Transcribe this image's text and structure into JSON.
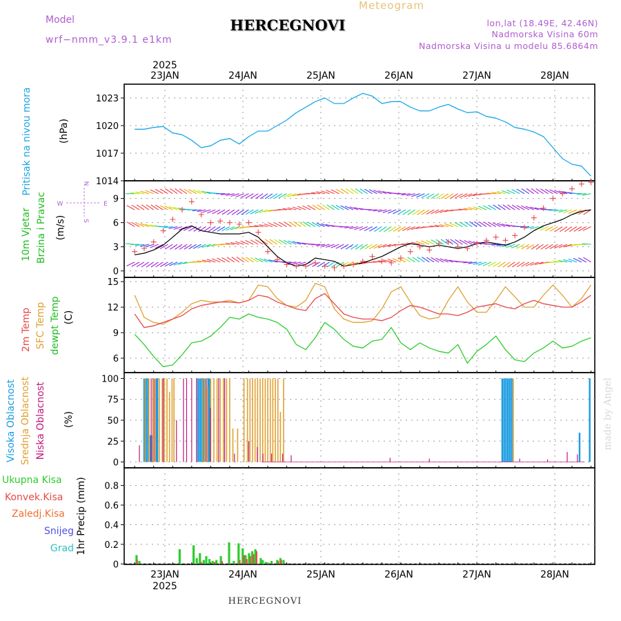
{
  "header": {
    "model_label": "Model",
    "model_name": "wrf−nmm_v3.9.1  e1km",
    "meteogram_label": "Meteogram",
    "station": "HERCEGNOVI",
    "lonlat": "lon,lat (18.49E, 42.46N)",
    "elevation": "Nadmorska Visina 60m",
    "model_elevation": "Nadmorska Visina u modelu 85.6864m",
    "footer_station": "HERCEGNOVI",
    "credit": "made by Angel"
  },
  "colors": {
    "pressure": "#1aa6e6",
    "wind_obs": "#e84848",
    "wind_line": "#000000",
    "t2m": "#e84848",
    "sfc": "#e0a030",
    "dewpt": "#2ecc2e",
    "high_cloud": "#1a9be0",
    "mid_cloud": "#e0a030",
    "low_cloud": "#c0187a",
    "total_precip": "#2ecc2e",
    "conv_precip": "#e84848",
    "frozen_precip": "#f07030",
    "snow": "#5050e0",
    "graupel": "#30c0c0",
    "label_magenta": "#b05cd0"
  },
  "chart_data": [
    {
      "type": "line",
      "name": "pressure",
      "ylabel_main": "Pritisak na nivou mora",
      "ylabel_unit": "(hPa)",
      "ylim": [
        1014,
        1024.5
      ],
      "yticks": [
        1014,
        1017,
        1020,
        1023
      ],
      "x_dates": [
        "2025",
        "23JAN",
        "24JAN",
        "25JAN",
        "26JAN",
        "27JAN",
        "28JAN"
      ],
      "x_hours": [
        0,
        3,
        6,
        9,
        12,
        15,
        18,
        21,
        24,
        27,
        30,
        33,
        36,
        39,
        42,
        45,
        48,
        51,
        54,
        57,
        60,
        63,
        66,
        69,
        72,
        75,
        78,
        81,
        84,
        87,
        90,
        93,
        96,
        99,
        102,
        105,
        108,
        111,
        114,
        117,
        120,
        123,
        126,
        129,
        132,
        135,
        138,
        141,
        144
      ],
      "series": [
        {
          "values": [
            1019.6,
            1019.6,
            1019.8,
            1019.9,
            1019.2,
            1019.0,
            1018.4,
            1017.6,
            1017.8,
            1018.4,
            1018.6,
            1018.0,
            1018.8,
            1019.4,
            1019.4,
            1020.0,
            1020.6,
            1021.4,
            1022.0,
            1022.6,
            1023.0,
            1022.4,
            1022.4,
            1023.0,
            1023.5,
            1023.2,
            1022.4,
            1022.6,
            1022.6,
            1022.0,
            1021.6,
            1021.6,
            1022.0,
            1022.3,
            1021.8,
            1021.4,
            1021.5,
            1021.0,
            1020.8,
            1020.4,
            1019.8,
            1019.6,
            1019.3,
            1018.8,
            1017.6,
            1016.4,
            1015.8,
            1015.6,
            1014.5
          ]
        }
      ]
    },
    {
      "type": "line",
      "name": "wind",
      "ylabel_main": "10m Vjetar",
      "ylabel_sub": "Brzina i Pravac",
      "ylabel_unit": "(m/s)",
      "compass_w": "W",
      "compass_e": "E",
      "compass_n": "N",
      "compass_s": "S",
      "ylim": [
        -0.8,
        11.2
      ],
      "yticks": [
        0,
        3,
        6,
        9
      ],
      "arrow_levels": [
        9.6,
        7.6,
        5.5,
        3.3,
        1.1
      ],
      "x_hours": [
        0,
        3,
        6,
        9,
        12,
        15,
        18,
        21,
        24,
        27,
        30,
        33,
        36,
        39,
        42,
        45,
        48,
        51,
        54,
        57,
        60,
        63,
        66,
        69,
        72,
        75,
        78,
        81,
        84,
        87,
        90,
        93,
        96,
        99,
        102,
        105,
        108,
        111,
        114,
        117,
        120,
        123,
        126,
        129,
        132,
        135,
        138,
        141,
        144
      ],
      "series": [
        {
          "values": [
            2.0,
            2.2,
            2.6,
            3.2,
            4.2,
            5.2,
            5.6,
            5.0,
            4.8,
            4.6,
            4.6,
            4.6,
            4.8,
            4.2,
            3.0,
            1.8,
            1.0,
            0.6,
            0.8,
            1.6,
            1.4,
            1.2,
            0.6,
            0.8,
            1.0,
            1.4,
            1.8,
            2.4,
            3.0,
            3.4,
            3.2,
            3.0,
            3.2,
            3.0,
            2.8,
            3.0,
            3.4,
            3.6,
            3.4,
            3.2,
            3.6,
            4.2,
            5.0,
            5.6,
            6.0,
            6.4,
            7.0,
            7.4,
            7.6
          ]
        },
        {
          "values": [
            2.4,
            2.8,
            3.6,
            5.0,
            6.4,
            7.6,
            8.6,
            7.0,
            6.0,
            6.2,
            6.0,
            5.8,
            6.0,
            4.8,
            2.4,
            1.4,
            0.8,
            0.6,
            0.6,
            1.0,
            0.6,
            0.4,
            0.6,
            0.8,
            1.2,
            1.8,
            1.2,
            1.0,
            1.6,
            2.4,
            3.0,
            2.6,
            3.4,
            3.6,
            3.0,
            2.8,
            3.4,
            3.8,
            4.2,
            3.8,
            4.4,
            5.4,
            6.6,
            7.8,
            9.0,
            9.6,
            10.2,
            10.8,
            11.0
          ]
        }
      ]
    },
    {
      "type": "line",
      "name": "temperature",
      "ylabel_main": "2m Temp",
      "ylabel_sfc": "SFC Temp",
      "ylabel_dew": "dewpt Temp",
      "ylabel_unit": "(C)",
      "ylim": [
        4.3,
        15.5
      ],
      "yticks": [
        6,
        9,
        12,
        15
      ],
      "x_hours": [
        0,
        3,
        6,
        9,
        12,
        15,
        18,
        21,
        24,
        27,
        30,
        33,
        36,
        39,
        42,
        45,
        48,
        51,
        54,
        57,
        60,
        63,
        66,
        69,
        72,
        75,
        78,
        81,
        84,
        87,
        90,
        93,
        96,
        99,
        102,
        105,
        108,
        111,
        114,
        117,
        120,
        123,
        126,
        129,
        132,
        135,
        138,
        141,
        144
      ],
      "series": [
        {
          "values": [
            11.2,
            9.6,
            9.8,
            10.2,
            10.6,
            11.0,
            11.8,
            12.2,
            12.4,
            12.6,
            12.6,
            12.5,
            12.8,
            13.4,
            13.2,
            12.6,
            12.2,
            11.8,
            11.6,
            13.0,
            13.6,
            12.4,
            11.2,
            10.8,
            10.6,
            10.6,
            10.4,
            10.8,
            11.6,
            12.2,
            12.0,
            11.6,
            11.2,
            11.2,
            11.0,
            11.4,
            12.0,
            12.2,
            12.4,
            12.0,
            11.8,
            12.4,
            12.8,
            12.4,
            12.2,
            12.0,
            12.0,
            12.6,
            13.4
          ]
        },
        {
          "values": [
            13.4,
            10.8,
            10.2,
            10.0,
            10.6,
            11.4,
            12.4,
            12.8,
            12.6,
            12.6,
            12.8,
            12.5,
            12.8,
            14.6,
            14.4,
            13.0,
            12.2,
            12.0,
            12.8,
            14.8,
            14.4,
            11.8,
            10.6,
            10.2,
            10.2,
            10.4,
            11.8,
            13.8,
            14.4,
            12.6,
            11.0,
            10.6,
            10.8,
            12.8,
            14.4,
            12.6,
            11.4,
            11.4,
            12.8,
            14.4,
            13.2,
            12.0,
            12.0,
            13.4,
            14.6,
            13.4,
            12.0,
            13.0,
            14.6
          ]
        },
        {
          "values": [
            8.8,
            7.6,
            6.2,
            5.0,
            5.2,
            6.4,
            7.8,
            8.0,
            8.6,
            9.6,
            10.8,
            10.6,
            11.2,
            10.8,
            10.6,
            10.2,
            9.4,
            7.6,
            7.0,
            8.4,
            10.2,
            9.4,
            8.2,
            7.4,
            7.2,
            8.0,
            8.2,
            9.6,
            7.8,
            7.0,
            7.8,
            7.2,
            6.8,
            6.6,
            7.6,
            5.4,
            6.8,
            7.6,
            8.6,
            7.0,
            5.8,
            5.6,
            6.6,
            7.2,
            8.0,
            7.2,
            7.4,
            8.0,
            8.4
          ]
        }
      ]
    },
    {
      "type": "bar",
      "name": "cloud",
      "ylabel_high": "Visoka Oblacnost",
      "ylabel_mid": "Srednja Oblacnost",
      "ylabel_low": "Niska Oblacnost",
      "ylabel_unit": "(%)",
      "ylim": [
        -7,
        107
      ],
      "yticks": [
        0,
        25,
        50,
        75,
        100
      ],
      "series": [
        {
          "name": "high",
          "x": [
            3.0,
            3.6,
            4.2,
            5.0,
            5.4,
            6.8,
            7.2,
            20.0,
            20.6,
            21.2,
            21.8,
            23.2,
            23.6,
            116.0,
            116.6,
            117.2,
            117.8,
            118.4,
            119.0,
            140.4,
            143.6
          ],
          "values": [
            100,
            100,
            100,
            32,
            32,
            100,
            100,
            100,
            100,
            100,
            100,
            100,
            100,
            100,
            100,
            100,
            100,
            100,
            100,
            35,
            100
          ]
        },
        {
          "name": "mid",
          "x": [
            3.3,
            4.5,
            5.7,
            6.5,
            7.8,
            8.7,
            9.4,
            10.2,
            11.0,
            11.8,
            12.4,
            21.5,
            22.3,
            23.0,
            24.0,
            25.0,
            26.0,
            27.0,
            28.0,
            29.0,
            30.0,
            31.0,
            32.5,
            34.5,
            35.6,
            36.4,
            37.2,
            38.0,
            38.8,
            39.6,
            40.4,
            41.2,
            42.0,
            42.8,
            43.6,
            44.4,
            45.2,
            46.0,
            47.0,
            119.5
          ],
          "values": [
            100,
            100,
            100,
            100,
            100,
            100,
            100,
            100,
            84,
            100,
            100,
            100,
            100,
            90,
            100,
            100,
            100,
            100,
            100,
            100,
            100,
            40,
            40,
            100,
            100,
            100,
            100,
            100,
            100,
            100,
            100,
            100,
            100,
            100,
            100,
            100,
            100,
            60,
            100,
            100
          ]
        },
        {
          "name": "low",
          "x": [
            1.5,
            5.2,
            6.1,
            9.0,
            13.2,
            15.4,
            16.4,
            18.0,
            19.5,
            22.6,
            23.9,
            26.5,
            28.4,
            31.5,
            36.0,
            38.7,
            40.5,
            43.2,
            46.7,
            49.4,
            80.6,
            93.0,
            121.5,
            130.3,
            136.5,
            139.7
          ],
          "values": [
            20,
            100,
            100,
            100,
            50,
            100,
            100,
            100,
            100,
            100,
            65,
            100,
            100,
            10,
            25,
            18,
            10,
            10,
            10,
            8,
            5,
            4,
            4,
            3,
            12,
            9
          ]
        }
      ]
    },
    {
      "type": "bar",
      "name": "precipitation",
      "labels": [
        "Ukupna  Kisa",
        "Konvek.Kisa",
        "Zaledj.Kisa",
        "Snijeg",
        "Grad"
      ],
      "ylabel_unit": "1hr Precip (mm)",
      "ylim": [
        -0.005,
        0.98
      ],
      "yticks": [
        0,
        0.2,
        0.4,
        0.6,
        0.8
      ],
      "x_bottom_dates": [
        "23JAN",
        "24JAN",
        "25JAN",
        "26JAN",
        "27JAN",
        "28JAN"
      ],
      "x_bottom_year": "2025",
      "series": [
        {
          "name": "total",
          "x": [
            0.6,
            1.5,
            14.2,
            18.6,
            19.6,
            20.6,
            21.8,
            22.6,
            23.6,
            24.6,
            25.8,
            27.2,
            29.8,
            31.3,
            32.8,
            34.1,
            35.0,
            36.1,
            37.1,
            38.1,
            39.8,
            40.4,
            41.4,
            42.2,
            43.2,
            45.0,
            46.0,
            47.0
          ],
          "values": [
            0.09,
            0.03,
            0.15,
            0.19,
            0.06,
            0.11,
            0.04,
            0.08,
            0.05,
            0.03,
            0.04,
            0.08,
            0.22,
            0.03,
            0.21,
            0.16,
            0.09,
            0.11,
            0.13,
            0.15,
            0.06,
            0.04,
            0.02,
            0.01,
            0.03,
            0.04,
            0.06,
            0.04
          ]
        },
        {
          "name": "convective",
          "x": [
            0.8,
            21.0,
            25.2,
            27.6,
            33.2,
            34.5,
            35.4,
            36.5,
            37.5,
            38.5,
            45.3,
            46.3
          ],
          "values": [
            0.04,
            0.02,
            0.02,
            0.03,
            0.04,
            0.09,
            0.05,
            0.08,
            0.1,
            0.13,
            0.03,
            0.04
          ]
        }
      ]
    }
  ]
}
